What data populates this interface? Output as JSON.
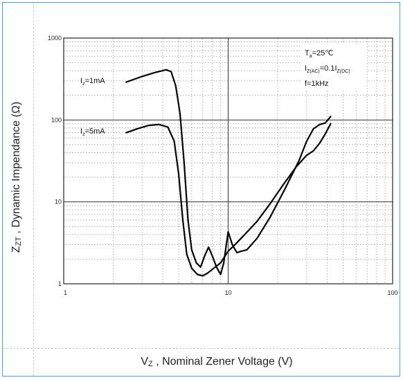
{
  "chart_data": {
    "type": "line",
    "xscale": "log",
    "yscale": "log",
    "xlim": [
      1,
      100
    ],
    "ylim": [
      1,
      1000
    ],
    "x_ticks": [
      "1",
      "10",
      "100"
    ],
    "y_ticks": [
      "1",
      "10",
      "100",
      "1000"
    ],
    "ylabel": {
      "symbol": "Z",
      "sub": "ZT",
      "text": " , Dynamic Impendance (Ω)"
    },
    "xlabel": {
      "symbol": "V",
      "sub": "Z",
      "text": " , Nominal Zener Voltage (V)"
    },
    "grid": true,
    "conditions": {
      "ta": {
        "main": "T",
        "sub": "a",
        "rest": "=25℃"
      },
      "iz": {
        "main": "I",
        "sub": "Z(AC)",
        "mid": "=0.1I",
        "sub2": "Z(DC)"
      },
      "f": "f=1kHz"
    },
    "series": [
      {
        "name": {
          "main": "I",
          "sub": "z",
          "rest": "=1mA"
        },
        "points": [
          [
            2.4,
            290
          ],
          [
            3.0,
            340
          ],
          [
            3.6,
            380
          ],
          [
            4.2,
            410
          ],
          [
            4.5,
            390
          ],
          [
            4.8,
            260
          ],
          [
            5.1,
            120
          ],
          [
            5.4,
            30
          ],
          [
            5.7,
            6
          ],
          [
            6.0,
            2.6
          ],
          [
            6.4,
            1.8
          ],
          [
            6.8,
            1.6
          ],
          [
            7.2,
            2.2
          ],
          [
            7.6,
            2.8
          ],
          [
            8.0,
            2.2
          ],
          [
            8.5,
            1.6
          ],
          [
            9.0,
            1.3
          ],
          [
            9.4,
            1.8
          ],
          [
            10.0,
            4.3
          ],
          [
            10.6,
            3.0
          ],
          [
            11.3,
            2.4
          ],
          [
            12.0,
            2.5
          ],
          [
            13.0,
            2.6
          ],
          [
            15.0,
            3.6
          ],
          [
            18.0,
            6.5
          ],
          [
            22.0,
            14
          ],
          [
            27.0,
            32
          ],
          [
            30.0,
            55
          ],
          [
            33.0,
            78
          ],
          [
            36.0,
            88
          ],
          [
            39.0,
            92
          ],
          [
            42.0,
            110
          ]
        ]
      },
      {
        "name": {
          "main": "I",
          "sub": "z",
          "rest": "=5mA"
        },
        "points": [
          [
            2.4,
            70
          ],
          [
            2.8,
            78
          ],
          [
            3.3,
            86
          ],
          [
            3.8,
            88
          ],
          [
            4.3,
            82
          ],
          [
            4.7,
            55
          ],
          [
            5.0,
            22
          ],
          [
            5.3,
            6
          ],
          [
            5.6,
            2.3
          ],
          [
            6.0,
            1.55
          ],
          [
            6.5,
            1.3
          ],
          [
            7.0,
            1.25
          ],
          [
            7.5,
            1.35
          ],
          [
            8.0,
            1.5
          ],
          [
            9.0,
            1.8
          ],
          [
            10.0,
            2.5
          ],
          [
            11.0,
            3.0
          ],
          [
            12.0,
            3.6
          ],
          [
            15.0,
            5.8
          ],
          [
            18.0,
            9.5
          ],
          [
            22.0,
            17
          ],
          [
            26.0,
            27
          ],
          [
            30.0,
            37
          ],
          [
            33.0,
            42
          ],
          [
            36.0,
            52
          ],
          [
            39.0,
            68
          ],
          [
            42.0,
            90
          ]
        ]
      }
    ]
  }
}
